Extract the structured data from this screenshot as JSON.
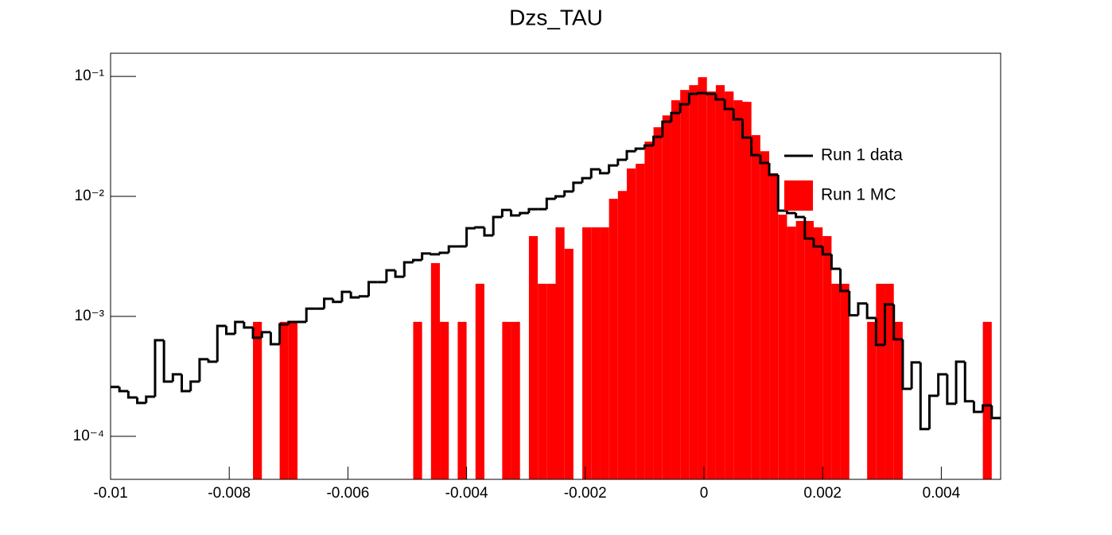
{
  "chart_data": {
    "type": "histogram",
    "title": "Dzs_TAU",
    "bins": [
      -0.01,
      -0.00985,
      -0.0097,
      -0.00955,
      -0.0094,
      -0.00925,
      -0.0091,
      -0.00895,
      -0.0088,
      -0.00865,
      -0.0085,
      -0.00835,
      -0.0082,
      -0.00805,
      -0.0079,
      -0.00775,
      -0.0076,
      -0.00745,
      -0.0073,
      -0.00715,
      -0.007,
      -0.00685,
      -0.0067,
      -0.00655,
      -0.0064,
      -0.00625,
      -0.0061,
      -0.00595,
      -0.0058,
      -0.00565,
      -0.0055,
      -0.00535,
      -0.0052,
      -0.00505,
      -0.0049,
      -0.00475,
      -0.0046,
      -0.00445,
      -0.0043,
      -0.00415,
      -0.004,
      -0.00385,
      -0.0037,
      -0.00355,
      -0.0034,
      -0.00325,
      -0.0031,
      -0.00295,
      -0.0028,
      -0.00265,
      -0.0025,
      -0.00235,
      -0.0022,
      -0.00205,
      -0.0019,
      -0.00175,
      -0.0016,
      -0.00145,
      -0.0013,
      -0.00115,
      -0.001,
      -0.00085,
      -0.0007,
      -0.00055,
      -0.0004,
      -0.00025,
      -0.0001,
      5e-05,
      0.0002,
      0.00035,
      0.0005,
      0.00065,
      0.0008,
      0.00095,
      0.0011,
      0.00125,
      0.0014,
      0.00155,
      0.0017,
      0.00185,
      0.002,
      0.00215,
      0.0023,
      0.00245,
      0.0026,
      0.00275,
      0.0029,
      0.00305,
      0.0032,
      0.00335,
      0.0035,
      0.00365,
      0.0038,
      0.00395,
      0.0041,
      0.00425,
      0.0044,
      0.00455,
      0.0047,
      0.00485,
      0.005
    ],
    "series": [
      {
        "name": "Run 1 data",
        "color": "#000000",
        "style": "step",
        "values": [
          0.000258,
          0.000238,
          0.000211,
          0.00019,
          0.000214,
          0.000633,
          0.000286,
          0.000329,
          0.000238,
          0.000286,
          0.000439,
          0.000419,
          0.000833,
          0.000715,
          0.000899,
          0.000807,
          0.000663,
          0.000738,
          0.000586,
          0.000859,
          0.000899,
          0.000899,
          0.00116,
          0.00116,
          0.0014,
          0.00132,
          0.0016,
          0.00144,
          0.00147,
          0.00193,
          0.00193,
          0.00242,
          0.00214,
          0.00282,
          0.00295,
          0.00334,
          0.00329,
          0.00339,
          0.00383,
          0.00383,
          0.00543,
          0.00552,
          0.00473,
          0.00673,
          0.00771,
          0.00694,
          0.00726,
          0.00783,
          0.00783,
          0.00955,
          0.01,
          0.011,
          0.013,
          0.0142,
          0.0168,
          0.0156,
          0.0181,
          0.0202,
          0.0238,
          0.025,
          0.0265,
          0.0314,
          0.0419,
          0.0496,
          0.0586,
          0.0715,
          0.0726,
          0.0715,
          0.0643,
          0.0535,
          0.0439,
          0.0309,
          0.0221,
          0.019,
          0.0151,
          0.0076,
          0.00726,
          0.00673,
          0.00446,
          0.00383,
          0.00329,
          0.00249,
          0.00163,
          0.00102,
          0.00128,
          0.00097,
          0.000578,
          0.00126,
          0.000643,
          0.000249,
          0.000413,
          0.000115,
          0.000218,
          0.000329,
          0.000187,
          0.000419,
          0.000196,
          0.00016,
          0.000181,
          0.000142
        ]
      },
      {
        "name": "Run 1 MC",
        "color": "#ff0000",
        "style": "fill",
        "values": [
          0,
          0,
          0,
          0,
          0,
          0,
          0,
          0,
          0,
          0,
          0,
          0,
          0,
          0,
          0,
          0,
          0.0009,
          0,
          0,
          0.0009,
          0.0009,
          0,
          0,
          0,
          0,
          0,
          0,
          0,
          0,
          0,
          0,
          0,
          0,
          0,
          0.0009,
          0,
          0.00278,
          0.0009,
          0,
          0.0009,
          0,
          0.00187,
          0,
          0,
          0.0009,
          0.0009,
          0,
          0.00467,
          0.00187,
          0.00187,
          0.00552,
          0.00366,
          0,
          0.00552,
          0.00552,
          0.00552,
          0.00955,
          0.0111,
          0.0171,
          0.0187,
          0.0286,
          0.0377,
          0.0473,
          0.0633,
          0.0771,
          0.0846,
          0.0985,
          0.0749,
          0.0846,
          0.0749,
          0.0633,
          0.0614,
          0.0324,
          0.0238,
          0.0156,
          0.00705,
          0.0056,
          0.00624,
          0.00624,
          0.00552,
          0.00467,
          0.00187,
          0.00187,
          0,
          0,
          0.0009,
          0.00187,
          0.00187,
          0.0009,
          0,
          0,
          0,
          0,
          0,
          0,
          0,
          0,
          0,
          0.0009,
          0
        ]
      }
    ],
    "xlim": [
      -0.01,
      0.005
    ],
    "xticks": [
      -0.01,
      -0.008,
      -0.006,
      -0.004,
      -0.002,
      0,
      0.002,
      0.004
    ],
    "ylim": [
      4.38e-05,
      0.156
    ],
    "log_y": true,
    "yticks": [
      {
        "value": 0.0001,
        "label": "10⁻⁴"
      },
      {
        "value": 0.001,
        "label": "10⁻³"
      },
      {
        "value": 0.01,
        "label": "10⁻²"
      },
      {
        "value": 0.1,
        "label": "10⁻¹"
      }
    ],
    "legend": "right"
  }
}
